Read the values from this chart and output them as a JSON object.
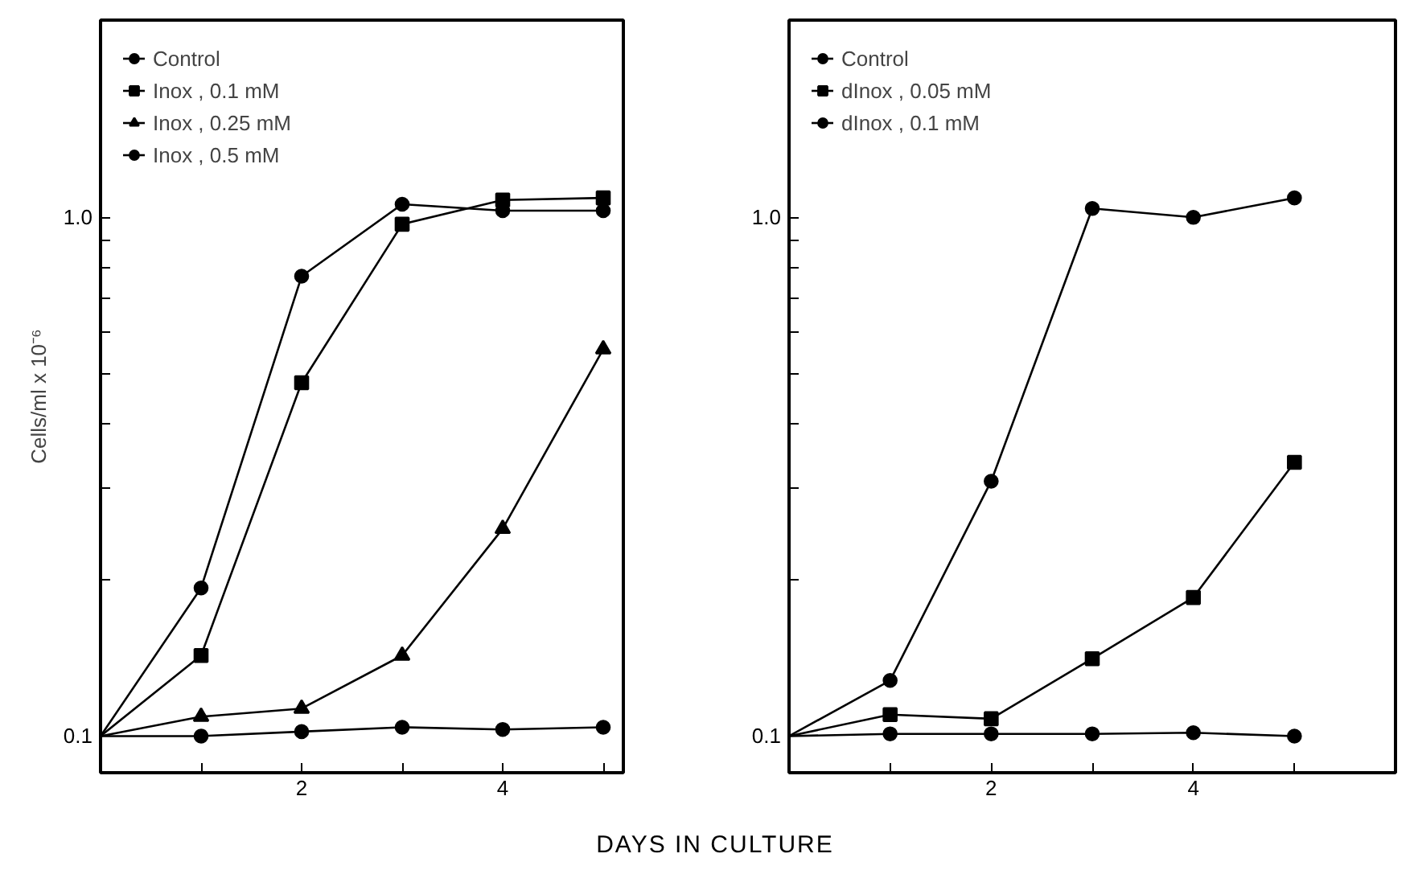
{
  "chart_data": [
    {
      "type": "line",
      "xlabel": "DAYS IN CULTURE",
      "ylabel": "Cells/ml x 10⁻⁶",
      "log": "y",
      "legend": "top left",
      "grid": false,
      "line_style": "solid",
      "xlim": [
        0,
        5.2
      ],
      "ylim": [
        0.085,
        2.4
      ],
      "xticks": [
        {
          "value": 1,
          "label": null
        },
        2,
        {
          "value": 3,
          "label": null
        },
        4,
        {
          "value": 5,
          "label": null
        }
      ],
      "yticks": [
        {
          "value": 0.1,
          "label": "0.1"
        },
        {
          "value": 0.2,
          "label": null
        },
        {
          "value": 0.3,
          "label": null
        },
        {
          "value": 0.4,
          "label": null
        },
        {
          "value": 0.5,
          "label": null
        },
        {
          "value": 0.6,
          "label": null
        },
        {
          "value": 0.7,
          "label": null
        },
        {
          "value": 0.8,
          "label": null
        },
        {
          "value": 0.9,
          "label": null
        },
        {
          "value": 1,
          "label": "1.0"
        }
      ],
      "x": [
        0,
        1,
        2,
        3,
        4,
        5
      ],
      "series": [
        {
          "name": "Control",
          "color": "#000000",
          "marker": "circle",
          "values": [
            0.1,
            0.193,
            0.77,
            1.06,
            1.03,
            1.03
          ]
        },
        {
          "name": "Inox , 0.1 mM",
          "color": "#000000",
          "marker": "square",
          "values": [
            0.1,
            0.143,
            0.48,
            0.97,
            1.08,
            1.09
          ]
        },
        {
          "name": "Inox , 0.25 mM",
          "color": "#000000",
          "marker": "triangle",
          "values": [
            0.1,
            0.109,
            0.113,
            0.143,
            0.251,
            0.557
          ]
        },
        {
          "name": "Inox , 0.5 mM",
          "color": "#000000",
          "marker": "circle",
          "values": [
            0.1,
            0.1,
            0.102,
            0.104,
            0.103,
            0.104
          ]
        }
      ]
    },
    {
      "type": "line",
      "log": "y",
      "legend": "top left",
      "grid": false,
      "line_style": "solid",
      "tick_labels": "xy",
      "xlim": [
        0,
        6
      ],
      "ylim": [
        0.085,
        2.4
      ],
      "xticks": [
        {
          "value": 1,
          "label": null
        },
        2,
        {
          "value": 3,
          "label": null
        },
        4,
        {
          "value": 5,
          "label": null
        }
      ],
      "yticks": [
        {
          "value": 0.1,
          "label": "0.1"
        },
        {
          "value": 0.2,
          "label": null
        },
        {
          "value": 0.3,
          "label": null
        },
        {
          "value": 0.4,
          "label": null
        },
        {
          "value": 0.5,
          "label": null
        },
        {
          "value": 0.6,
          "label": null
        },
        {
          "value": 0.7,
          "label": null
        },
        {
          "value": 0.8,
          "label": null
        },
        {
          "value": 0.9,
          "label": null
        },
        {
          "value": 1,
          "label": "1.0"
        }
      ],
      "x": [
        0,
        1,
        2,
        3,
        4,
        5
      ],
      "series": [
        {
          "name": "Control",
          "color": "#000000",
          "marker": "circle",
          "values": [
            0.1,
            0.128,
            0.31,
            1.04,
            1.0,
            1.09
          ]
        },
        {
          "name": "dInox , 0.05 mM",
          "color": "#000000",
          "marker": "square",
          "values": [
            0.1,
            0.11,
            0.108,
            0.141,
            0.185,
            0.337
          ]
        },
        {
          "name": "dInox , 0.1 mM",
          "color": "#000000",
          "marker": "circle",
          "values": [
            0.1,
            0.101,
            0.101,
            0.101,
            0.1015,
            0.1
          ]
        }
      ]
    }
  ]
}
